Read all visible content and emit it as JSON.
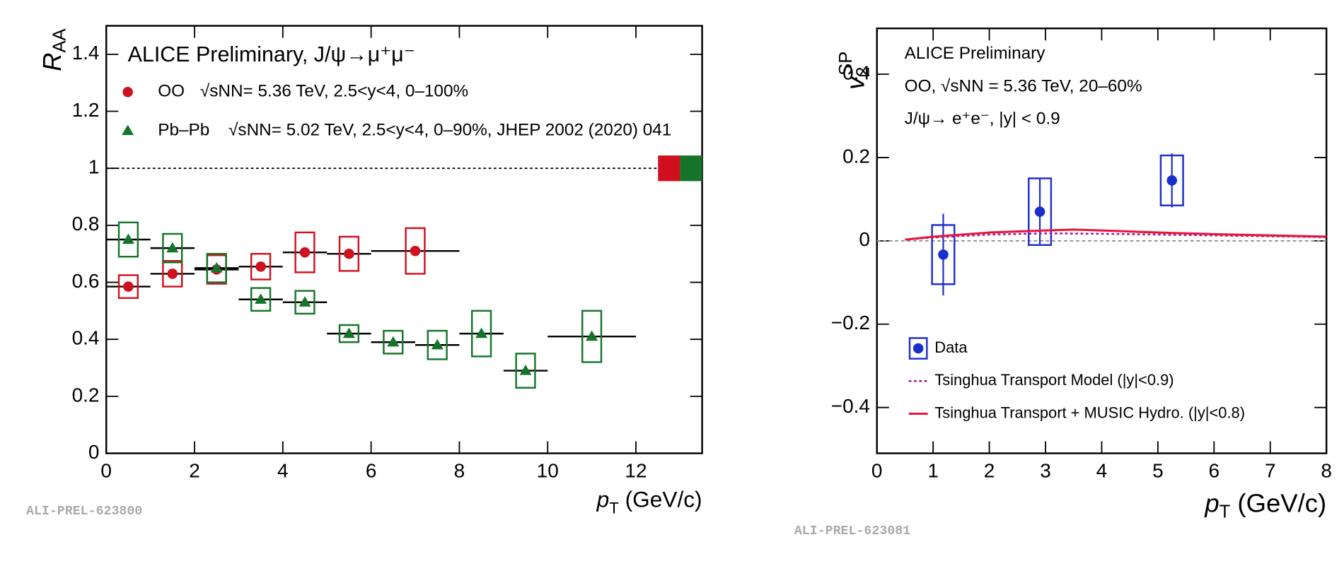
{
  "chart_data": [
    {
      "type": "scatter",
      "annotations": [
        "ALICE Preliminary, J/ψ→μ⁺μ⁻"
      ],
      "ylabel": "R",
      "ylabel_sub": "AA",
      "xlabel": "p",
      "xlabel_sub": "T",
      "xlabel_unit": " (GeV/c)",
      "watermark": "ALI-PREL-623800",
      "xlim": [
        0,
        13.5
      ],
      "ylim": [
        0,
        1.5
      ],
      "xticks": [
        0,
        2,
        4,
        6,
        8,
        10,
        12
      ],
      "yticks": [
        0,
        0.2,
        0.4,
        0.6,
        0.8,
        1,
        1.2,
        1.4
      ],
      "hline": 1,
      "series": [
        {
          "name": "OO",
          "note": "√sNN= 5.36 TeV, 2.5<y<4, 0–100%",
          "color": "#d0101e",
          "marker": "circle",
          "x": [
            0.5,
            1.5,
            2.5,
            3.5,
            4.5,
            5.5,
            7
          ],
          "xerr": [
            0.5,
            0.5,
            0.5,
            0.5,
            0.5,
            0.5,
            1
          ],
          "values": [
            0.585,
            0.63,
            0.645,
            0.655,
            0.705,
            0.7,
            0.71
          ],
          "syst": [
            0.04,
            0.045,
            0.05,
            0.045,
            0.07,
            0.06,
            0.08
          ],
          "global_unc": 0.045
        },
        {
          "name": "Pb–Pb",
          "note": "√sNN= 5.02 TeV, 2.5<y<4, 0–90%, JHEP 2002 (2020) 041",
          "color": "#14752a",
          "marker": "triangle",
          "x": [
            0.5,
            1.5,
            2.5,
            3.5,
            4.5,
            5.5,
            6.5,
            7.5,
            8.5,
            9.5,
            11
          ],
          "xerr": [
            0.5,
            0.5,
            0.5,
            0.5,
            0.5,
            0.5,
            0.5,
            0.5,
            0.5,
            0.5,
            1
          ],
          "values": [
            0.75,
            0.72,
            0.65,
            0.54,
            0.53,
            0.42,
            0.39,
            0.38,
            0.42,
            0.29,
            0.41
          ],
          "syst": [
            0.06,
            0.05,
            0.05,
            0.04,
            0.04,
            0.03,
            0.04,
            0.05,
            0.08,
            0.06,
            0.09
          ],
          "global_unc": 0.045
        }
      ]
    },
    {
      "type": "scatter",
      "annotations": [
        "ALICE Preliminary",
        "OO,  √sNN = 5.36 TeV, 20–60%",
        "J/ψ→ e⁺e⁻, |y| < 0.9"
      ],
      "ylabel": "v",
      "ylabel_sub": "2",
      "ylabel_sup": "SP",
      "xlabel": "p",
      "xlabel_sub": "T",
      "xlabel_unit": " (GeV/c)",
      "watermark": "ALI-PREL-623081",
      "xlim": [
        0,
        8
      ],
      "ylim": [
        -0.51,
        0.51
      ],
      "xticks": [
        0,
        1,
        2,
        3,
        4,
        5,
        6,
        7,
        8
      ],
      "yticks": [
        {
          "value": -0.4,
          "label": "−0.4"
        },
        {
          "value": -0.2,
          "label": "−0.2"
        },
        0,
        0.2,
        0.4
      ],
      "hline": 0,
      "series": [
        {
          "name": "Data",
          "color": "#1a2ecc",
          "marker": "circle",
          "x": [
            1.18,
            2.9,
            5.25
          ],
          "values": [
            -0.033,
            0.07,
            0.145
          ],
          "yerr": [
            0.098,
            0.08,
            0.065
          ],
          "syst": [
            0.071,
            0.08,
            0.06
          ]
        },
        {
          "name": "Tsinghua Transport Model (|y|<0.9)",
          "color": "#a0209a",
          "marker": "dotted-line",
          "x": [
            0.5,
            1,
            2,
            3,
            4,
            5,
            6,
            7,
            8
          ],
          "values": [
            0.003,
            0.008,
            0.015,
            0.018,
            0.017,
            0.015,
            0.013,
            0.011,
            0.009
          ]
        },
        {
          "name": "Tsinghua Transport + MUSIC Hydro. (|y|<0.8)",
          "color": "#e8143c",
          "marker": "line",
          "x": [
            0.5,
            1,
            2,
            3,
            3.5,
            4,
            5,
            6,
            7,
            8
          ],
          "values": [
            0.003,
            0.01,
            0.02,
            0.025,
            0.027,
            0.025,
            0.02,
            0.016,
            0.013,
            0.01
          ]
        }
      ]
    }
  ]
}
